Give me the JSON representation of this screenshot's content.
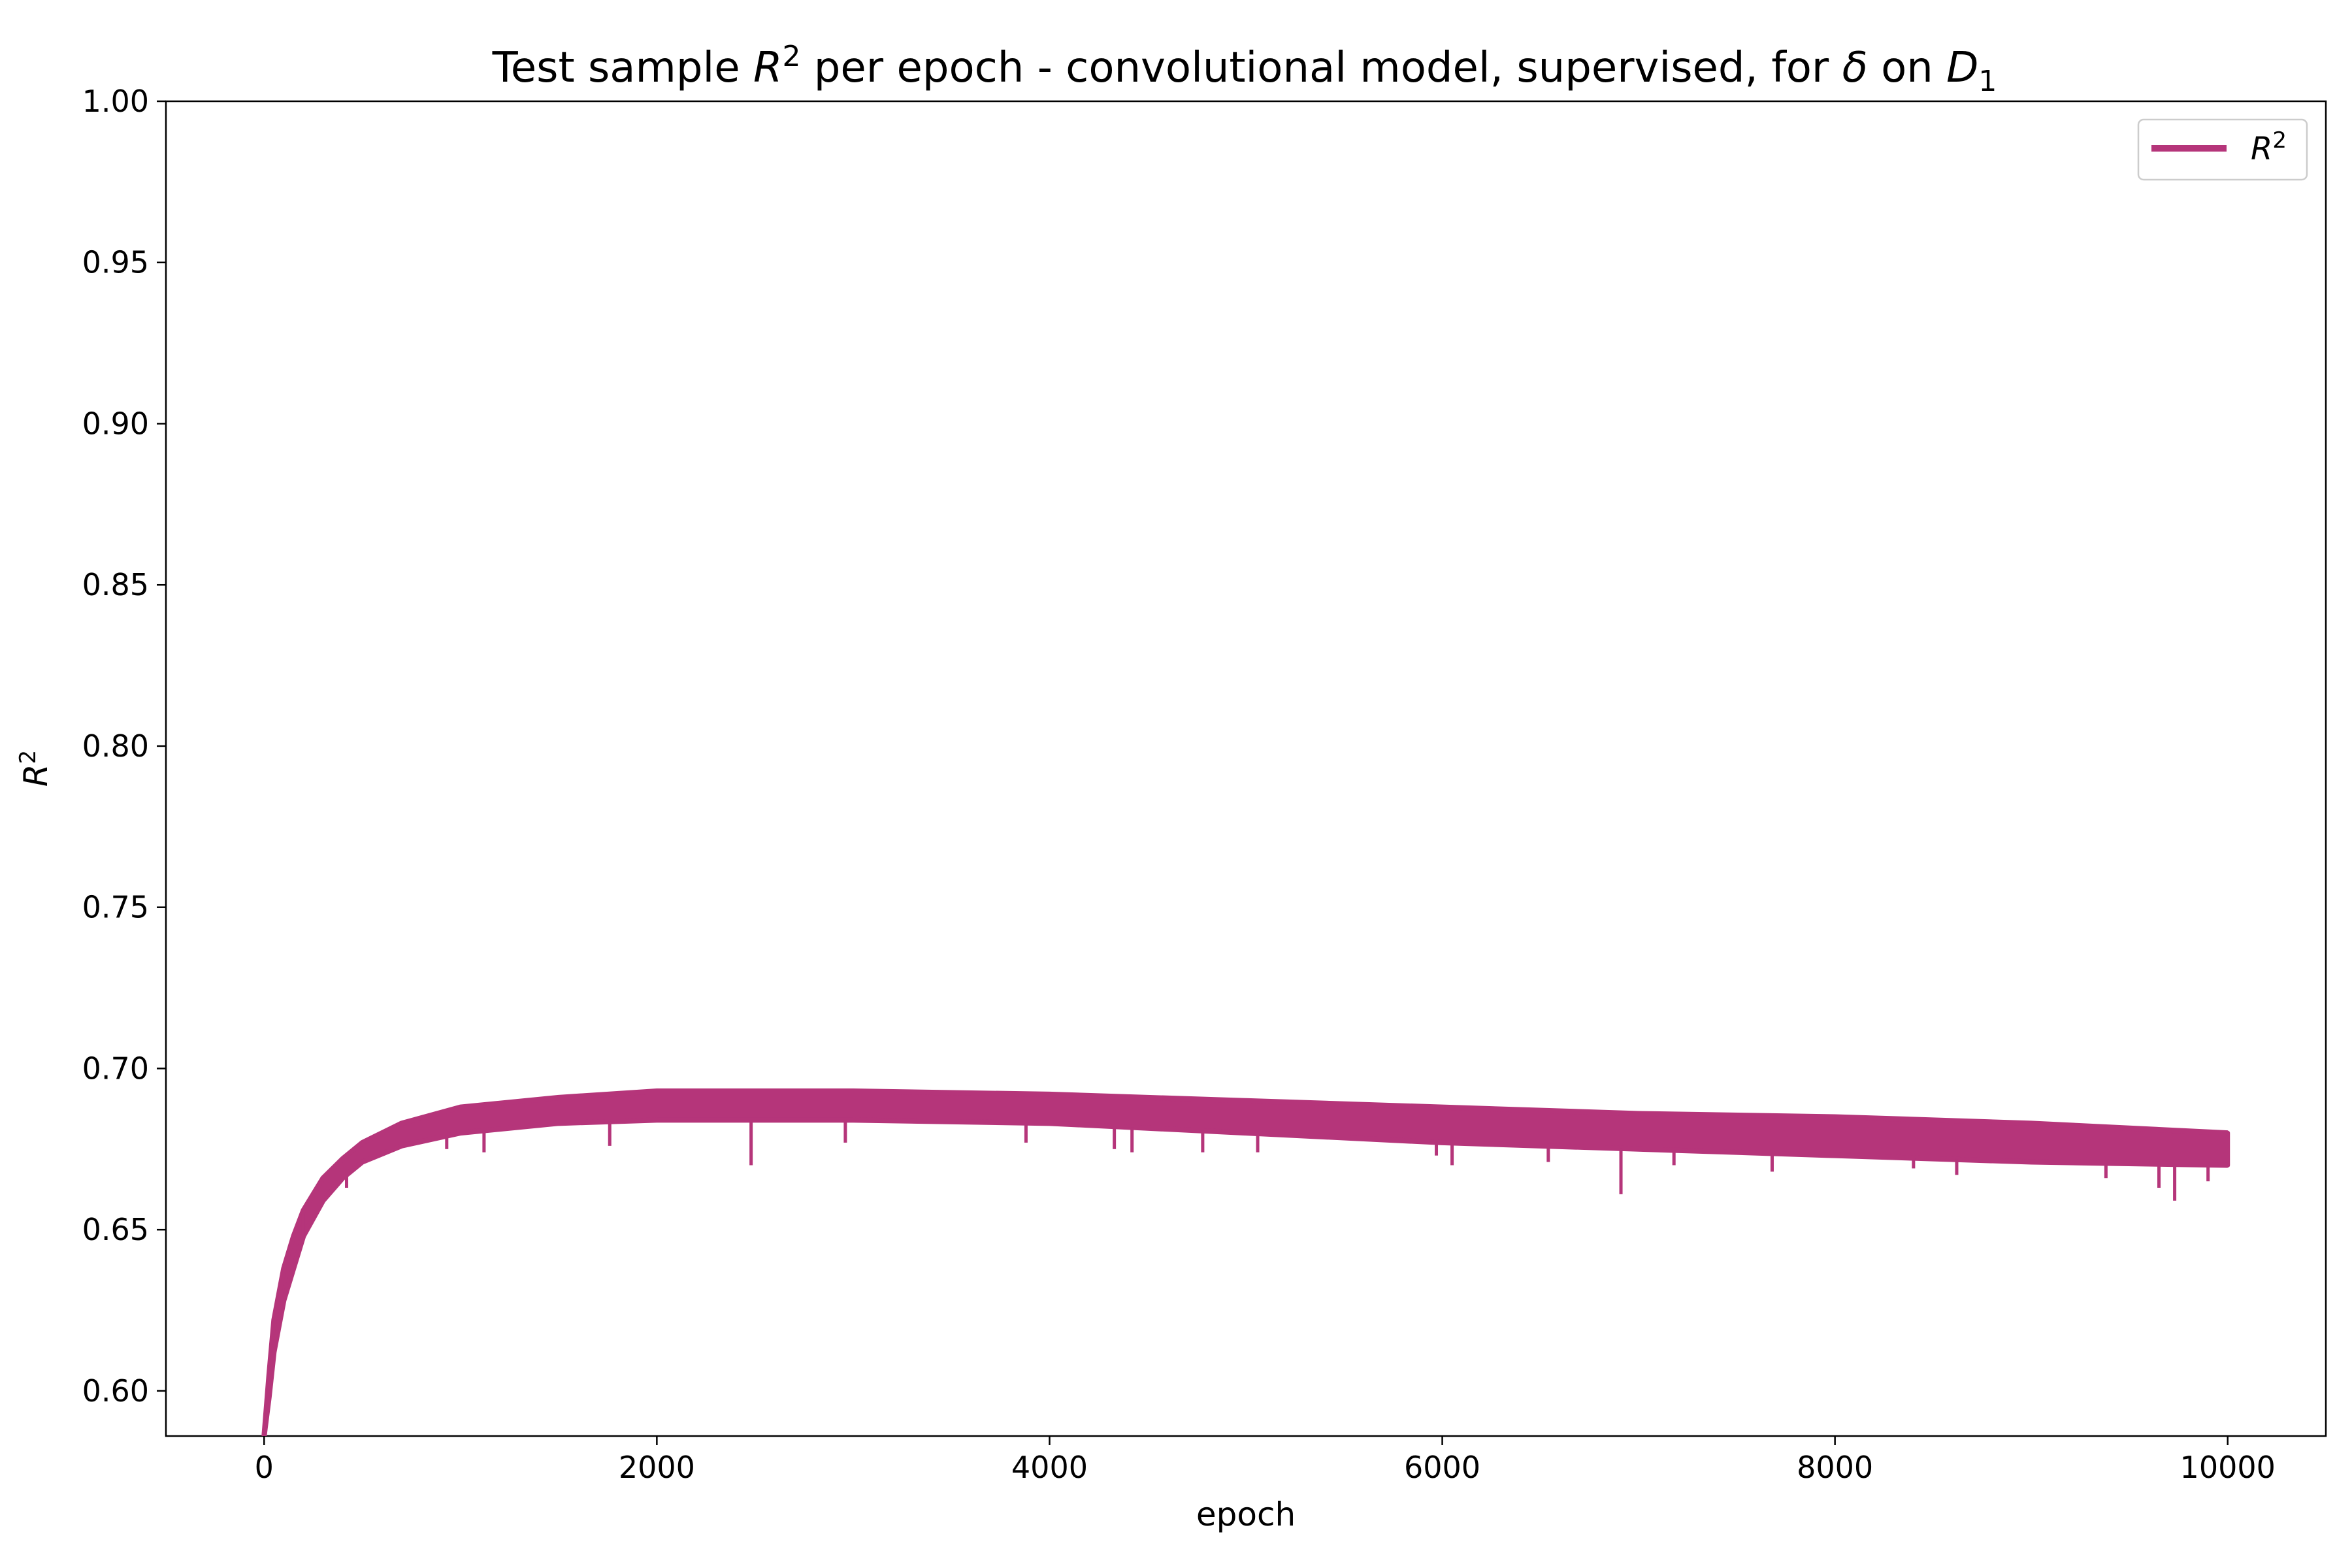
{
  "chart_data": {
    "type": "line",
    "title": "Test sample R² per epoch - convolutional model, supervised, for δ on D₁",
    "title_parts": {
      "prefix": "Test sample ",
      "var": "R",
      "sup": "2",
      "middle": " per epoch - convolutional model, supervised, for ",
      "delta": "δ",
      "on": " on ",
      "dvar": "D",
      "dsub": "1"
    },
    "xlabel": "epoch",
    "ylabel": {
      "var": "R",
      "sup": "2"
    },
    "xlim": [
      -500,
      10500
    ],
    "ylim": [
      0.586,
      1.0
    ],
    "xticks": [
      0,
      2000,
      4000,
      6000,
      8000,
      10000
    ],
    "xtick_labels": [
      "0",
      "2000",
      "4000",
      "6000",
      "8000",
      "10000"
    ],
    "yticks": [
      0.6,
      0.65,
      0.7,
      0.75,
      0.8,
      0.85,
      0.9,
      0.95,
      1.0
    ],
    "ytick_labels": [
      "0.60",
      "0.65",
      "0.70",
      "0.75",
      "0.80",
      "0.85",
      "0.90",
      "0.95",
      "1.00"
    ],
    "grid": false,
    "legend_position": "top-right",
    "series": [
      {
        "name": "R²",
        "legend_var": "R",
        "legend_sup": "2",
        "color": "#b5357a",
        "envelope_upper": [
          {
            "x": 0,
            "y": 0.586
          },
          {
            "x": 25,
            "y": 0.605
          },
          {
            "x": 50,
            "y": 0.622
          },
          {
            "x": 100,
            "y": 0.638
          },
          {
            "x": 150,
            "y": 0.648
          },
          {
            "x": 200,
            "y": 0.656
          },
          {
            "x": 300,
            "y": 0.666
          },
          {
            "x": 400,
            "y": 0.672
          },
          {
            "x": 500,
            "y": 0.677
          },
          {
            "x": 700,
            "y": 0.683
          },
          {
            "x": 1000,
            "y": 0.688
          },
          {
            "x": 1500,
            "y": 0.691
          },
          {
            "x": 2000,
            "y": 0.693
          },
          {
            "x": 3000,
            "y": 0.693
          },
          {
            "x": 4000,
            "y": 0.692
          },
          {
            "x": 5000,
            "y": 0.69
          },
          {
            "x": 6000,
            "y": 0.688
          },
          {
            "x": 7000,
            "y": 0.686
          },
          {
            "x": 8000,
            "y": 0.685
          },
          {
            "x": 9000,
            "y": 0.683
          },
          {
            "x": 10000,
            "y": 0.68
          }
        ],
        "envelope_lower": [
          {
            "x": 0,
            "y": 0.586
          },
          {
            "x": 25,
            "y": 0.598
          },
          {
            "x": 50,
            "y": 0.612
          },
          {
            "x": 100,
            "y": 0.628
          },
          {
            "x": 150,
            "y": 0.638
          },
          {
            "x": 200,
            "y": 0.648
          },
          {
            "x": 300,
            "y": 0.659
          },
          {
            "x": 400,
            "y": 0.666
          },
          {
            "x": 500,
            "y": 0.671
          },
          {
            "x": 700,
            "y": 0.676
          },
          {
            "x": 1000,
            "y": 0.68
          },
          {
            "x": 1500,
            "y": 0.683
          },
          {
            "x": 2000,
            "y": 0.684
          },
          {
            "x": 3000,
            "y": 0.684
          },
          {
            "x": 4000,
            "y": 0.683
          },
          {
            "x": 5000,
            "y": 0.68
          },
          {
            "x": 6000,
            "y": 0.677
          },
          {
            "x": 7000,
            "y": 0.675
          },
          {
            "x": 8000,
            "y": 0.673
          },
          {
            "x": 9000,
            "y": 0.671
          },
          {
            "x": 10000,
            "y": 0.67
          }
        ],
        "dips": [
          {
            "x": 200,
            "y": 0.655
          },
          {
            "x": 420,
            "y": 0.663
          },
          {
            "x": 930,
            "y": 0.675
          },
          {
            "x": 1120,
            "y": 0.674
          },
          {
            "x": 1760,
            "y": 0.676
          },
          {
            "x": 2480,
            "y": 0.67
          },
          {
            "x": 2960,
            "y": 0.677
          },
          {
            "x": 3880,
            "y": 0.677
          },
          {
            "x": 4330,
            "y": 0.675
          },
          {
            "x": 4420,
            "y": 0.674
          },
          {
            "x": 4780,
            "y": 0.674
          },
          {
            "x": 5060,
            "y": 0.674
          },
          {
            "x": 5970,
            "y": 0.673
          },
          {
            "x": 6050,
            "y": 0.67
          },
          {
            "x": 6540,
            "y": 0.671
          },
          {
            "x": 6910,
            "y": 0.661
          },
          {
            "x": 7180,
            "y": 0.67
          },
          {
            "x": 7680,
            "y": 0.668
          },
          {
            "x": 8400,
            "y": 0.669
          },
          {
            "x": 8620,
            "y": 0.667
          },
          {
            "x": 9380,
            "y": 0.666
          },
          {
            "x": 9650,
            "y": 0.663
          },
          {
            "x": 9730,
            "y": 0.659
          },
          {
            "x": 9900,
            "y": 0.665
          }
        ]
      }
    ]
  }
}
